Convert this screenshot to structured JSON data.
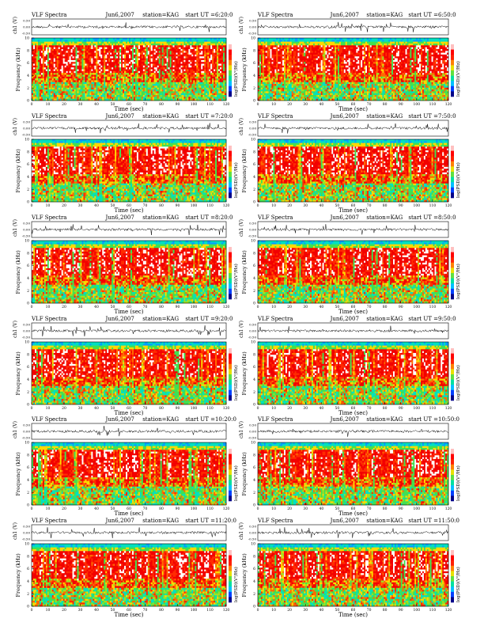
{
  "colors": {
    "spectrogram": [
      "#00a0ff",
      "#00e0c0",
      "#40e050",
      "#a0e020",
      "#ffd800",
      "#ff6a00",
      "#ff2a00",
      "#f20000",
      "#ffffff"
    ],
    "colorbar": [
      "#000088",
      "#0040ff",
      "#00c0ff",
      "#00e0a0",
      "#60e040",
      "#e8e000",
      "#ff8000",
      "#ff2000",
      "#ff0000",
      "#ffc0c0"
    ],
    "trace": "#000000"
  },
  "panel_text": {
    "title": "VLF Spectra",
    "station": "station=KAG",
    "colorbar_label": "log(PSD)(V²/Hz)",
    "xlabel": "Time (sec)",
    "ylabel_top": "ch1 (V)",
    "ylabel_bottom": "Frequency (kHz)",
    "ylabel_bottom_left": "ch1 Frequency (kHz)"
  },
  "chart_data": [
    {
      "type": "heatmap",
      "title": "VLF Spectra",
      "date": "Jun6,2007",
      "station": "station=KAG",
      "start": "start UT =6:20:0",
      "xlabel": "Time (sec)",
      "ylabel": "Frequency (kHz)",
      "xlim": [
        0,
        120
      ],
      "ylim": [
        0,
        10
      ],
      "xticks": [
        "0",
        "10",
        "20",
        "30",
        "40",
        "50",
        "60",
        "70",
        "80",
        "90",
        "100",
        "110",
        "120"
      ],
      "yticks": [
        "0",
        "2",
        "4",
        "6",
        "8",
        "10"
      ],
      "trace_ylim": [
        -0.5,
        0.5
      ],
      "trace_yticks": [
        "0.50",
        "0.00",
        "-0.50"
      ]
    },
    {
      "type": "heatmap",
      "title": "VLF Spectra",
      "date": "Jun6,2007",
      "station": "station=KAG",
      "start": "start UT =6:50:0",
      "xlabel": "Time (sec)",
      "ylabel": "Frequency (kHz)",
      "xlim": [
        0,
        120
      ],
      "ylim": [
        0,
        10
      ],
      "xticks": [
        "0",
        "10",
        "20",
        "30",
        "40",
        "50",
        "60",
        "70",
        "80",
        "90",
        "100",
        "110",
        "120"
      ],
      "yticks": [
        "0",
        "2",
        "4",
        "6",
        "8",
        "10"
      ],
      "trace_ylim": [
        -0.5,
        0.5
      ],
      "trace_yticks": [
        "0.50",
        "0.00",
        "-0.50"
      ]
    },
    {
      "type": "heatmap",
      "title": "VLF Spectra",
      "date": "Jun6,2007",
      "station": "station=KAG",
      "start": "start UT =7:20:0",
      "xlabel": "Time (sec)",
      "ylabel": "Frequency (kHz)",
      "xlim": [
        0,
        120
      ],
      "ylim": [
        0,
        10
      ],
      "xticks": [
        "0",
        "10",
        "20",
        "30",
        "40",
        "50",
        "60",
        "70",
        "80",
        "90",
        "100",
        "110",
        "120"
      ],
      "yticks": [
        "0",
        "2",
        "4",
        "6",
        "8",
        "10"
      ],
      "trace_ylim": [
        -0.5,
        0.5
      ],
      "trace_yticks": [
        "0.50",
        "0.00",
        "-0.50"
      ]
    },
    {
      "type": "heatmap",
      "title": "VLF Spectra",
      "date": "Jun6,2007",
      "station": "station=KAG",
      "start": "start UT =7:50:0",
      "xlabel": "Time (sec)",
      "ylabel": "Frequency (kHz)",
      "xlim": [
        0,
        120
      ],
      "ylim": [
        0,
        10
      ],
      "xticks": [
        "0",
        "10",
        "20",
        "30",
        "40",
        "50",
        "60",
        "70",
        "80",
        "90",
        "100",
        "110",
        "120"
      ],
      "yticks": [
        "0",
        "2",
        "4",
        "6",
        "8",
        "10"
      ],
      "trace_ylim": [
        -0.5,
        0.5
      ],
      "trace_yticks": [
        "0.50",
        "0.00",
        "-0.50"
      ]
    },
    {
      "type": "heatmap",
      "title": "VLF Spectra",
      "date": "Jun6,2007",
      "station": "station=KAG",
      "start": "start UT =8:20:0",
      "xlabel": "Time (sec)",
      "ylabel": "Frequency (kHz)",
      "xlim": [
        0,
        120
      ],
      "ylim": [
        0,
        10
      ],
      "xticks": [
        "0",
        "10",
        "20",
        "30",
        "40",
        "50",
        "60",
        "70",
        "80",
        "90",
        "100",
        "110",
        "120"
      ],
      "yticks": [
        "0",
        "2",
        "4",
        "6",
        "8",
        "10"
      ],
      "trace_ylim": [
        -0.5,
        0.5
      ],
      "trace_yticks": [
        "0.50",
        "0.00",
        "-0.50"
      ]
    },
    {
      "type": "heatmap",
      "title": "VLF Spectra",
      "date": "Jun6,2007",
      "station": "station=KAG",
      "start": "start UT =8:50:0",
      "xlabel": "Time (sec)",
      "ylabel": "Frequency (kHz)",
      "xlim": [
        0,
        120
      ],
      "ylim": [
        0,
        10
      ],
      "xticks": [
        "0",
        "10",
        "20",
        "30",
        "40",
        "50",
        "60",
        "70",
        "80",
        "90",
        "100",
        "110",
        "120"
      ],
      "yticks": [
        "0",
        "2",
        "4",
        "6",
        "8",
        "10"
      ],
      "trace_ylim": [
        -0.5,
        0.5
      ],
      "trace_yticks": [
        "0.50",
        "0.00",
        "-0.50"
      ]
    },
    {
      "type": "heatmap",
      "title": "VLF Spectra",
      "date": "Jun6,2007",
      "station": "station=KAG",
      "start": "start UT =9:20:0",
      "xlabel": "Time (sec)",
      "ylabel": "Frequency (kHz)",
      "xlim": [
        0,
        120
      ],
      "ylim": [
        0,
        10
      ],
      "xticks": [
        "0",
        "10",
        "20",
        "30",
        "40",
        "50",
        "60",
        "70",
        "80",
        "90",
        "100",
        "110",
        "120"
      ],
      "yticks": [
        "0",
        "2",
        "4",
        "6",
        "8",
        "10"
      ],
      "trace_ylim": [
        -0.5,
        0.5
      ],
      "trace_yticks": [
        "0.50",
        "0.00",
        "-0.50"
      ]
    },
    {
      "type": "heatmap",
      "title": "VLF Spectra",
      "date": "Jun6,2007",
      "station": "station=KAG",
      "start": "start UT =9:50:0",
      "xlabel": "Time (sec)",
      "ylabel": "Frequency (kHz)",
      "xlim": [
        0,
        120
      ],
      "ylim": [
        0,
        10
      ],
      "xticks": [
        "0",
        "10",
        "20",
        "30",
        "40",
        "50",
        "60",
        "70",
        "80",
        "90",
        "100",
        "110",
        "120"
      ],
      "yticks": [
        "0",
        "2",
        "4",
        "6",
        "8",
        "10"
      ],
      "trace_ylim": [
        -0.5,
        0.5
      ],
      "trace_yticks": [
        "0.50",
        "0.00",
        "-0.50"
      ]
    },
    {
      "type": "heatmap",
      "title": "VLF Spectra",
      "date": "Jun6,2007",
      "station": "station=KAG",
      "start": "start UT =10:20:0",
      "xlabel": "Time (sec)",
      "ylabel": "Frequency (kHz)",
      "xlim": [
        0,
        120
      ],
      "ylim": [
        0,
        10
      ],
      "xticks": [
        "0",
        "10",
        "20",
        "30",
        "40",
        "50",
        "60",
        "70",
        "80",
        "90",
        "100",
        "110",
        "120"
      ],
      "yticks": [
        "0",
        "2",
        "4",
        "6",
        "8",
        "10"
      ],
      "trace_ylim": [
        -0.5,
        0.5
      ],
      "trace_yticks": [
        "0.50",
        "0.00",
        "-0.50"
      ]
    },
    {
      "type": "heatmap",
      "title": "VLF Spectra",
      "date": "Jun6,2007",
      "station": "station=KAG",
      "start": "start UT =10:50:0",
      "xlabel": "Time (sec)",
      "ylabel": "Frequency (kHz)",
      "xlim": [
        0,
        120
      ],
      "ylim": [
        0,
        10
      ],
      "xticks": [
        "0",
        "10",
        "20",
        "30",
        "40",
        "50",
        "60",
        "70",
        "80",
        "90",
        "100",
        "110",
        "120"
      ],
      "yticks": [
        "0",
        "2",
        "4",
        "6",
        "8",
        "10"
      ],
      "trace_ylim": [
        -0.5,
        0.5
      ],
      "trace_yticks": [
        "0.50",
        "0.00",
        "-0.50"
      ]
    },
    {
      "type": "heatmap",
      "title": "VLF Spectra",
      "date": "Jun6,2007",
      "station": "station=KAG",
      "start": "start UT =11:20:0",
      "xlabel": "Time (sec)",
      "ylabel": "Frequency (kHz)",
      "xlim": [
        0,
        120
      ],
      "ylim": [
        0,
        10
      ],
      "xticks": [
        "0",
        "10",
        "20",
        "30",
        "40",
        "50",
        "60",
        "70",
        "80",
        "90",
        "100",
        "110",
        "120"
      ],
      "yticks": [
        "0",
        "2",
        "4",
        "6",
        "8",
        "10"
      ],
      "trace_ylim": [
        -0.5,
        0.5
      ],
      "trace_yticks": [
        "0.50",
        "0.00",
        "-0.50"
      ]
    },
    {
      "type": "heatmap",
      "title": "VLF Spectra",
      "date": "Jun6,2007",
      "station": "station=KAG",
      "start": "start UT =11:50:0",
      "xlabel": "Time (sec)",
      "ylabel": "Frequency (kHz)",
      "xlim": [
        0,
        120
      ],
      "ylim": [
        0,
        10
      ],
      "xticks": [
        "0",
        "10",
        "20",
        "30",
        "40",
        "50",
        "60",
        "70",
        "80",
        "90",
        "100",
        "110",
        "120"
      ],
      "yticks": [
        "0",
        "2",
        "4",
        "6",
        "8",
        "10"
      ],
      "trace_ylim": [
        -0.5,
        0.5
      ],
      "trace_yticks": [
        "0.50",
        "0.00",
        "-0.50"
      ]
    }
  ]
}
